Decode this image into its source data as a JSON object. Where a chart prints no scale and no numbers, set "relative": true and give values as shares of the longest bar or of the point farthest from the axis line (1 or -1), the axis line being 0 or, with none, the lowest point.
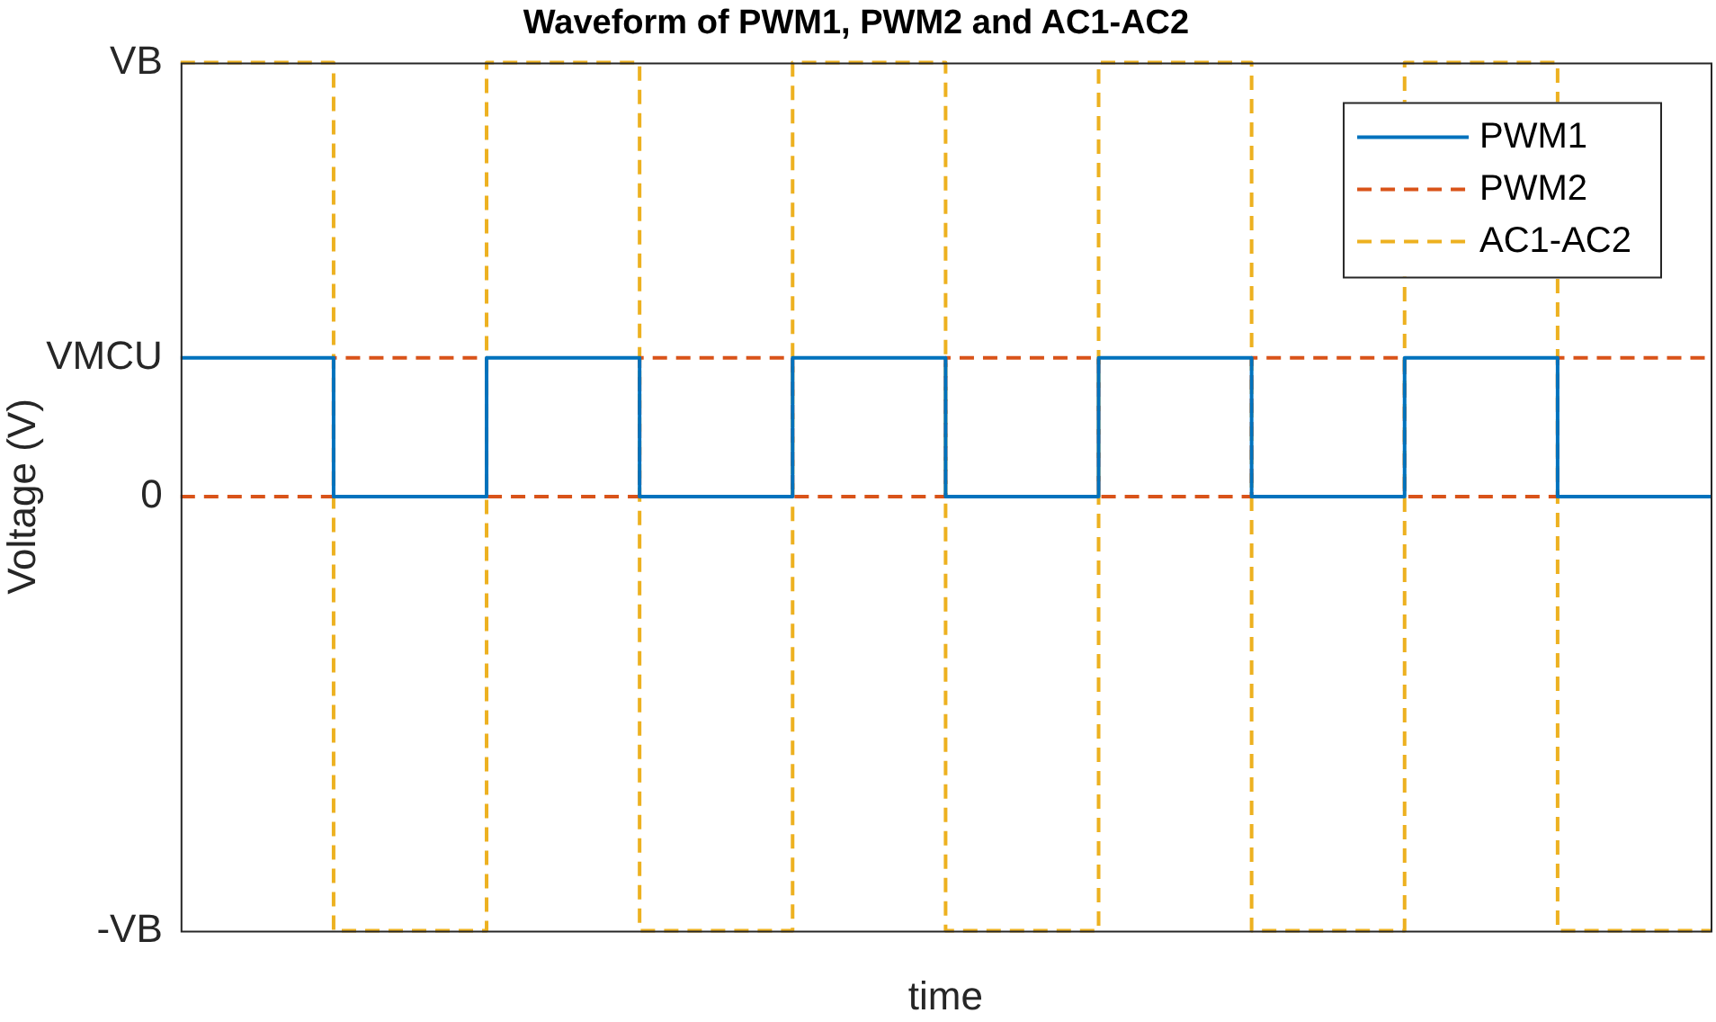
{
  "chart_data": {
    "type": "step",
    "title": "Waveform of PWM1, PWM2 and AC1-AC2",
    "xlabel": "time",
    "ylabel": "Voltage (V)",
    "categories": [
      null,
      null,
      null,
      null,
      null,
      null,
      null,
      null,
      null,
      null,
      null
    ],
    "series": [
      {
        "name": "PWM1",
        "color": "#0072bd",
        "line_style": "solid",
        "values": [
          0.66,
          0.5,
          0.66,
          0.5,
          0.66,
          0.5,
          0.66,
          0.5,
          0.66,
          0.5,
          0.5
        ]
      },
      {
        "name": "PWM2",
        "color": "#d95319",
        "line_style": "dashed",
        "values": [
          0.5,
          0.66,
          0.5,
          0.66,
          0.5,
          0.66,
          0.5,
          0.66,
          0.5,
          0.66,
          0.66
        ]
      },
      {
        "name": "AC1-AC2",
        "color": "#edb120",
        "line_style": "dashed",
        "values": [
          1,
          0,
          1,
          0,
          1,
          0,
          1,
          0,
          1,
          0,
          0
        ]
      }
    ],
    "relative": true,
    "annotations": [
      "VB",
      "VMCU",
      "0",
      "-VB"
    ],
    "grid": false,
    "legend": "top right",
    "marker": "none"
  }
}
